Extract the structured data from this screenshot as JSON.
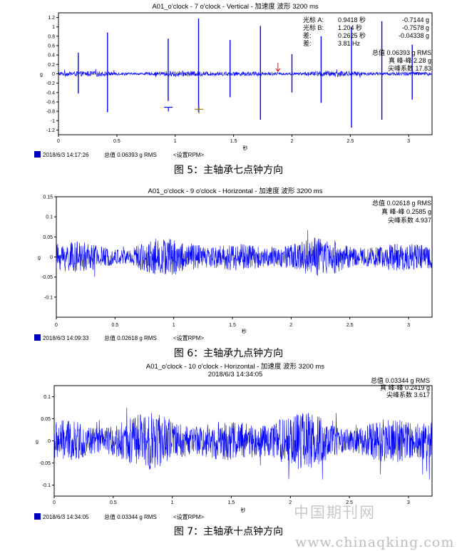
{
  "captions": [
    "图 5：主轴承七点钟方向",
    "图 6：主轴承九点钟方向",
    "图 7：主轴承十点钟方向"
  ],
  "watermark": {
    "cn": "中国期刊网",
    "url": "www.chinaqking.com"
  },
  "colors": {
    "signal": "#0000ff",
    "frame": "#000000",
    "status_square": "#0000c0"
  },
  "chart_data": [
    {
      "type": "line",
      "title": "A01_o'clock - 7 o'clock - Vertical - 加速度 波形 3200 ms",
      "subtitle": "",
      "xlabel": "秒",
      "ylabel": "g",
      "xlim": [
        0,
        3.2
      ],
      "ylim": [
        -1.3,
        1.3
      ],
      "x_ticks": [
        0,
        0.5,
        1,
        1.5,
        2,
        2.5,
        3
      ],
      "y_ticks": [
        -1.2,
        -1,
        -0.8,
        -0.6,
        -0.4,
        -0.2,
        0,
        0.2,
        0.4,
        0.6,
        0.8,
        1,
        1.2
      ],
      "y_tick_labels": [
        "-1.2",
        "-1",
        "-0.8",
        "-0.6",
        "-0.4",
        "-0.2",
        "0",
        "0.2",
        "0.4",
        "0.6",
        "0.8",
        "1",
        "1.2"
      ],
      "grid": false,
      "series": [
        {
          "noise_amplitude": 0.06
        }
      ],
      "impulses": [
        {
          "x": 0.17,
          "up": 0.45,
          "down": -0.42
        },
        {
          "x": 0.42,
          "up": 0.88,
          "down": -0.82
        },
        {
          "x": 0.94,
          "up": 0.75,
          "down": -0.58
        },
        {
          "x": 1.2,
          "up": 1.18,
          "down": -0.82
        },
        {
          "x": 1.47,
          "up": 0.72,
          "down": -0.5
        },
        {
          "x": 1.73,
          "up": 1.02,
          "down": -0.98
        },
        {
          "x": 2.0,
          "up": 0.42,
          "down": -0.4
        },
        {
          "x": 2.25,
          "up": 0.8,
          "down": -0.62
        },
        {
          "x": 2.51,
          "up": 1.0,
          "down": -1.15
        },
        {
          "x": 2.77,
          "up": 1.12,
          "down": -0.98
        },
        {
          "x": 3.03,
          "up": 0.62,
          "down": -0.55
        }
      ],
      "cursors": [
        {
          "x": 0.9418,
          "y": -0.7144,
          "color": "#0000ff"
        },
        {
          "x": 1.204,
          "y": -0.7578,
          "color": "#a08000"
        }
      ],
      "marker": {
        "x": 1.88,
        "y": 0.05,
        "color": "#ff0000"
      },
      "cursor_readout": [
        {
          "label": "光标 A:",
          "time": "0.9418 秒",
          "value": "-0.7144 g"
        },
        {
          "label": "光标 B:",
          "time": "1.204 秒",
          "value": "-0.7578 g"
        },
        {
          "label": "差:",
          "time": "0.2625 秒",
          "value": "-0.04338 g"
        },
        {
          "label": "差:",
          "time": "3.81 Hz",
          "value": ""
        }
      ],
      "stats": [
        "总值 0.06393 g RMS",
        "真 峰-峰 2.28 g",
        "尖峰系数 17.83"
      ],
      "status": {
        "datetime": "2018/6/3 14:17:26",
        "overall": "总值 0.06393 g RMS",
        "rpm": "<设置RPM>"
      }
    },
    {
      "type": "line",
      "title": "A01_o'clock - 9 o'clock - Horizontal - 加速度 波形 3200 ms",
      "subtitle": "",
      "xlabel": "秒",
      "ylabel": "g",
      "xlim": [
        0,
        3.2
      ],
      "ylim": [
        -0.15,
        0.15
      ],
      "x_ticks": [
        0,
        0.5,
        1,
        1.5,
        2,
        2.5,
        3
      ],
      "y_ticks": [
        -0.1,
        -0.05,
        0,
        0.05,
        0.1,
        0.15
      ],
      "y_tick_labels": [
        "-0.1",
        "-0.05",
        "0",
        "0.05",
        "0.1",
        "0.15"
      ],
      "grid": false,
      "series": [
        {
          "noise_amplitude": 0.045
        }
      ],
      "stats": [
        "总值 0.02618 g RMS",
        "真 峰-峰 0.2585 g",
        "尖峰系数 4.937"
      ],
      "status": {
        "datetime": "2018/6/3 14:09:33",
        "overall": "总值 0.02618 g RMS",
        "rpm": "<设置RPM>"
      }
    },
    {
      "type": "line",
      "title": "A01_o'clock - 10 o'clock - Horizontal - 加速度 波形 3200 ms",
      "subtitle": "2018/6/3 14:34:05",
      "xlabel": "秒",
      "ylabel": "g",
      "xlim": [
        0,
        3.2
      ],
      "ylim": [
        -0.125,
        0.125
      ],
      "x_ticks": [
        0,
        0.5,
        1,
        1.5,
        2,
        2.5,
        3
      ],
      "y_ticks": [
        -0.1,
        -0.05,
        0,
        0.05,
        0.1
      ],
      "y_tick_labels": [
        "-0.1",
        "-0.05",
        "0",
        "0.05",
        "0.1"
      ],
      "grid": false,
      "series": [
        {
          "noise_amplitude": 0.06
        }
      ],
      "stats": [
        "总值 0.03344 g RMS",
        "真 峰-峰 0.2419 g",
        "尖峰系数 3.617"
      ],
      "status": {
        "datetime": "2018/6/3 14:34:05",
        "overall": "总值 0.03344 g RMS",
        "rpm": "<设置RPM>"
      }
    }
  ]
}
